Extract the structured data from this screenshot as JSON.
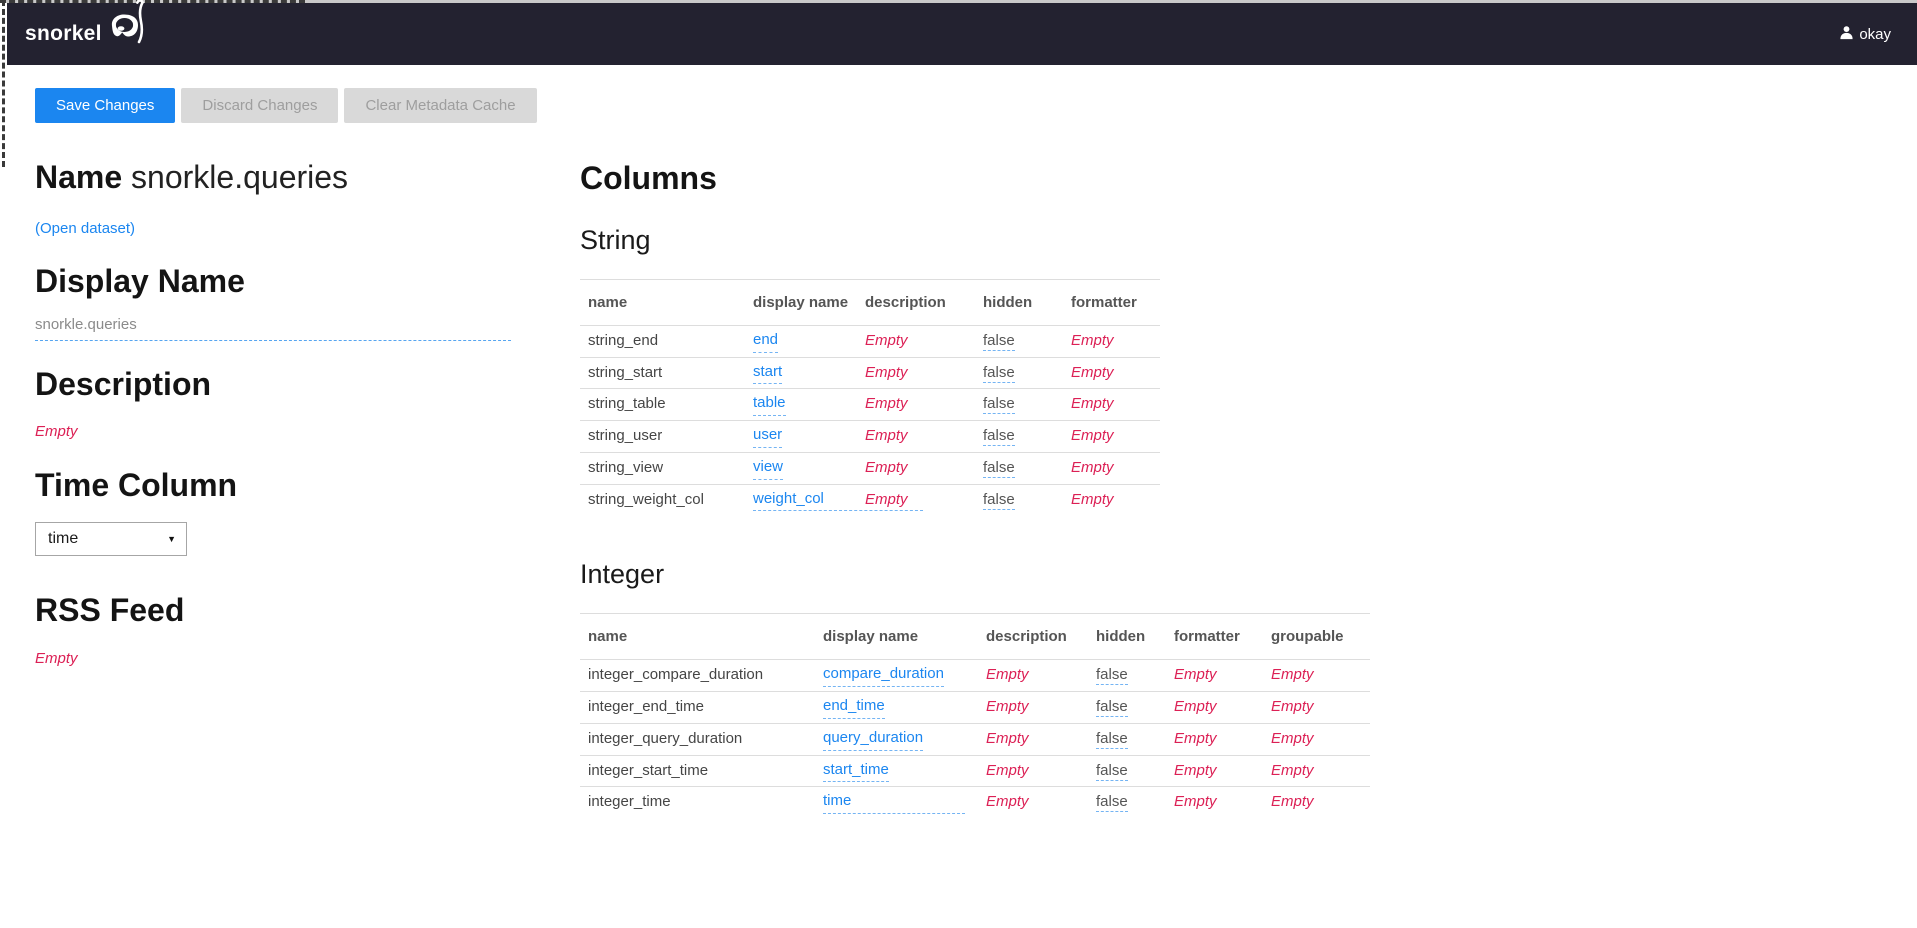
{
  "navbar": {
    "brand": "snorkel",
    "user": "okay"
  },
  "toolbar": {
    "save_label": "Save Changes",
    "discard_label": "Discard Changes",
    "clear_cache_label": "Clear Metadata Cache"
  },
  "dataset": {
    "name_label": "Name",
    "name_value": "snorkle.queries",
    "open_link": "(Open dataset)",
    "display_name_heading": "Display Name",
    "display_name_value": "snorkle.queries",
    "description_heading": "Description",
    "description_value": "Empty",
    "time_column_heading": "Time Column",
    "time_column_value": "time",
    "rss_heading": "RSS Feed",
    "rss_value": "Empty"
  },
  "columns_section": {
    "heading": "Columns",
    "tables": [
      {
        "type": "String",
        "headers": [
          "name",
          "display name",
          "description",
          "hidden",
          "formatter"
        ],
        "rows": [
          [
            "string_end",
            "end",
            "Empty",
            "false",
            "Empty"
          ],
          [
            "string_start",
            "start",
            "Empty",
            "false",
            "Empty"
          ],
          [
            "string_table",
            "table",
            "Empty",
            "false",
            "Empty"
          ],
          [
            "string_user",
            "user",
            "Empty",
            "false",
            "Empty"
          ],
          [
            "string_view",
            "view",
            "Empty",
            "false",
            "Empty"
          ],
          [
            "string_weight_col",
            "weight_col",
            "Empty",
            "false",
            "Empty"
          ]
        ]
      },
      {
        "type": "Integer",
        "headers": [
          "name",
          "display name",
          "description",
          "hidden",
          "formatter",
          "groupable"
        ],
        "rows": [
          [
            "integer_compare_duration",
            "compare_duration",
            "Empty",
            "false",
            "Empty",
            "Empty"
          ],
          [
            "integer_end_time",
            "end_time",
            "Empty",
            "false",
            "Empty",
            "Empty"
          ],
          [
            "integer_query_duration",
            "query_duration",
            "Empty",
            "false",
            "Empty",
            "Empty"
          ],
          [
            "integer_start_time",
            "start_time",
            "Empty",
            "false",
            "Empty",
            "Empty"
          ],
          [
            "integer_time",
            "time",
            "Empty",
            "false",
            "Empty",
            "Empty"
          ]
        ]
      }
    ]
  },
  "colors": {
    "navbar_bg": "#232230",
    "accent_blue": "#1b86f0",
    "empty_red": "#dc2055",
    "dashed_underline_blue": "#74b4f3",
    "muted_button_bg": "#d9d9d9"
  }
}
